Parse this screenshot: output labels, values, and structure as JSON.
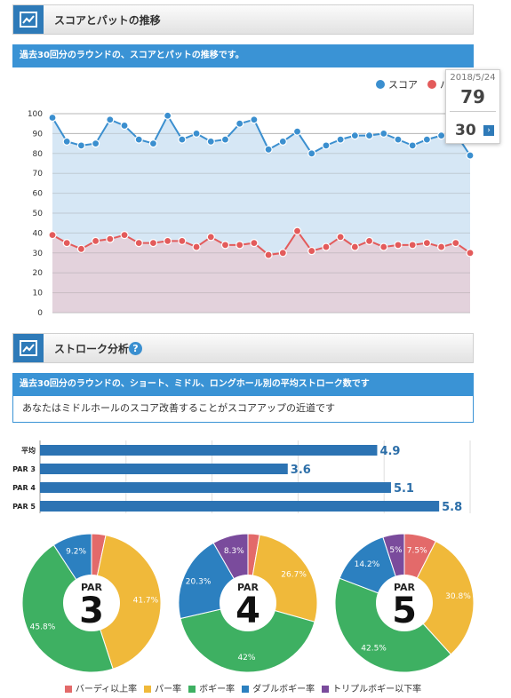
{
  "section1": {
    "title": "スコアとパットの推移",
    "band": "過去30回分のラウンドの、スコアとパットの推移です。"
  },
  "section2": {
    "title": "ストローク分析",
    "band": "過去30回分のラウンドの、ショート、ミドル、ロングホール別の平均ストローク数です",
    "advice": "あなたはミドルホールのスコア改善することがスコアアップの近道です"
  },
  "tooltip": {
    "date": "2018/5/24",
    "score": "79",
    "putts": "30",
    "next": "›"
  },
  "colors": {
    "score": "#3b8fcf",
    "putts": "#e35b5b",
    "bar": "#2c73b3"
  },
  "chart_data": [
    {
      "type": "line",
      "ylim": [
        0,
        100
      ],
      "yticks": [
        "0",
        "10",
        "20",
        "30",
        "40",
        "50",
        "60",
        "70",
        "80",
        "90",
        "100"
      ],
      "legend": "top-right",
      "series": [
        {
          "name": "スコア",
          "values": [
            98,
            86,
            84,
            85,
            97,
            94,
            87,
            85,
            99,
            87,
            90,
            86,
            87,
            95,
            97,
            82,
            86,
            91,
            80,
            84,
            87,
            89,
            89,
            90,
            87,
            84,
            87,
            89,
            90,
            79
          ]
        },
        {
          "name": "パ",
          "values": [
            39,
            35,
            32,
            36,
            37,
            39,
            35,
            35,
            36,
            36,
            33,
            38,
            34,
            34,
            35,
            29,
            30,
            41,
            31,
            33,
            38,
            33,
            36,
            33,
            34,
            34,
            35,
            33,
            35,
            30
          ]
        }
      ]
    },
    {
      "type": "bar",
      "orientation": "horizontal",
      "categories": [
        "平均",
        "PAR 3",
        "PAR 4",
        "PAR 5"
      ],
      "values": [
        4.9,
        3.6,
        5.1,
        5.8
      ],
      "labels": [
        "4.9",
        "3.6",
        "5.1",
        "5.8"
      ],
      "xlim": [
        0,
        6.25
      ]
    },
    {
      "type": "pie",
      "center_top": "PAR",
      "center_num": "3",
      "values": [
        3.3,
        41.7,
        45.8,
        9.2,
        0
      ],
      "labels": [
        "",
        "41.7%",
        "45.8%",
        "9.2%",
        ""
      ]
    },
    {
      "type": "pie",
      "center_top": "PAR",
      "center_num": "4",
      "values": [
        2.7,
        26.7,
        42,
        20.3,
        8.3
      ],
      "labels": [
        "",
        "26.7%",
        "42%",
        "20.3%",
        "8.3%"
      ]
    },
    {
      "type": "pie",
      "center_top": "PAR",
      "center_num": "5",
      "values": [
        7.5,
        30.8,
        42.5,
        14.2,
        5
      ],
      "labels": [
        "7.5%",
        "30.8%",
        "42.5%",
        "14.2%",
        "5%"
      ]
    }
  ],
  "pie_legend": [
    {
      "name": "バーディ以上率",
      "color": "#e36a6a"
    },
    {
      "name": "パー率",
      "color": "#f0b93a"
    },
    {
      "name": "ボギー率",
      "color": "#3eb062"
    },
    {
      "name": "ダブルボギー率",
      "color": "#2c80c0"
    },
    {
      "name": "トリプルボギー以下率",
      "color": "#7a4b9c"
    }
  ]
}
